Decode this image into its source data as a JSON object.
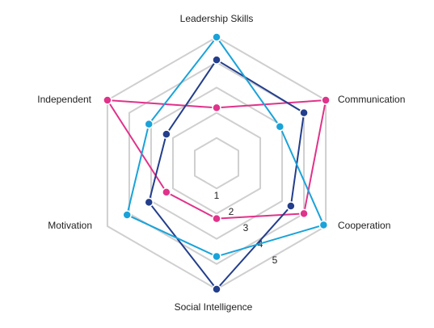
{
  "chart_data": {
    "type": "radar",
    "categories": [
      "Leadership Skills",
      "Communication",
      "Cooperation",
      "Social Intelligence",
      "Motivation",
      "Independent"
    ],
    "series": [
      {
        "color": "#e0338a",
        "values": [
          2.2,
          5,
          4,
          2.2,
          2.3,
          5
        ]
      },
      {
        "color": "#233e8b",
        "values": [
          4.1,
          4,
          3.4,
          5,
          3.1,
          2.3
        ]
      },
      {
        "color": "#1aa3d9",
        "values": [
          5,
          2.9,
          4.9,
          3.7,
          4.1,
          3.1
        ]
      }
    ],
    "rlim": [
      0,
      5
    ],
    "rticks": [
      1,
      2,
      3,
      4,
      5
    ],
    "grid": true
  }
}
